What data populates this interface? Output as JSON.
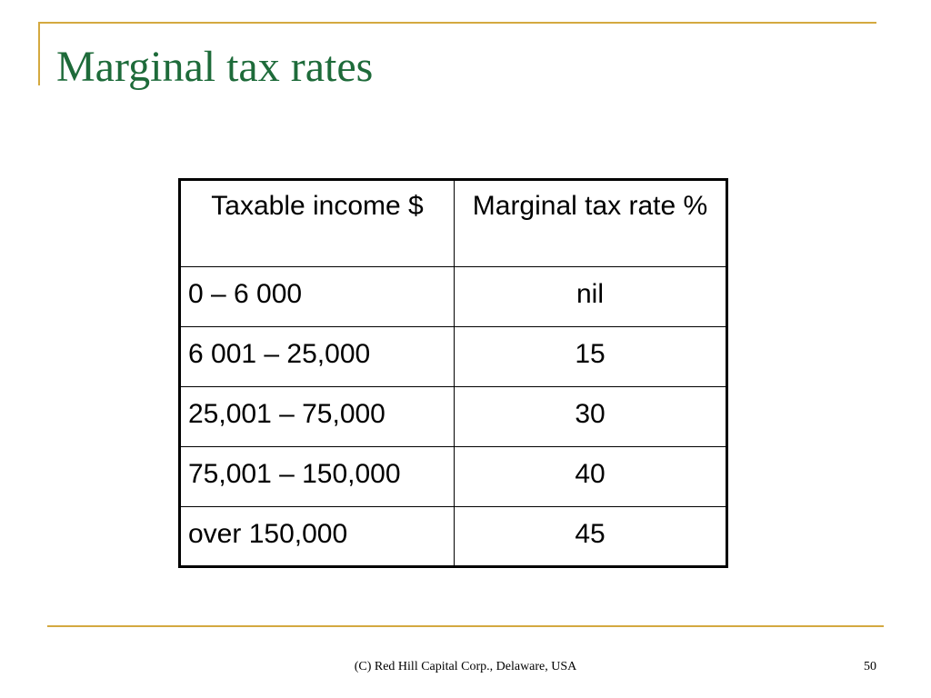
{
  "slide": {
    "title": "Marginal tax rates",
    "footer": "(C) Red Hill Capital Corp., Delaware, USA",
    "page_number": "50"
  },
  "table": {
    "headers": [
      "Taxable income $",
      "Marginal tax rate %"
    ],
    "rows": [
      {
        "income": "0 – 6 000",
        "rate": "nil"
      },
      {
        "income": "6 001 – 25,000",
        "rate": "15"
      },
      {
        "income": "25,001 – 75,000",
        "rate": "30"
      },
      {
        "income": "75,001 – 150,000",
        "rate": "40"
      },
      {
        "income": "over 150,000",
        "rate": "45"
      }
    ]
  },
  "colors": {
    "title": "#1E6B3A",
    "accent_lines": "#D4A940",
    "text": "#000000"
  }
}
